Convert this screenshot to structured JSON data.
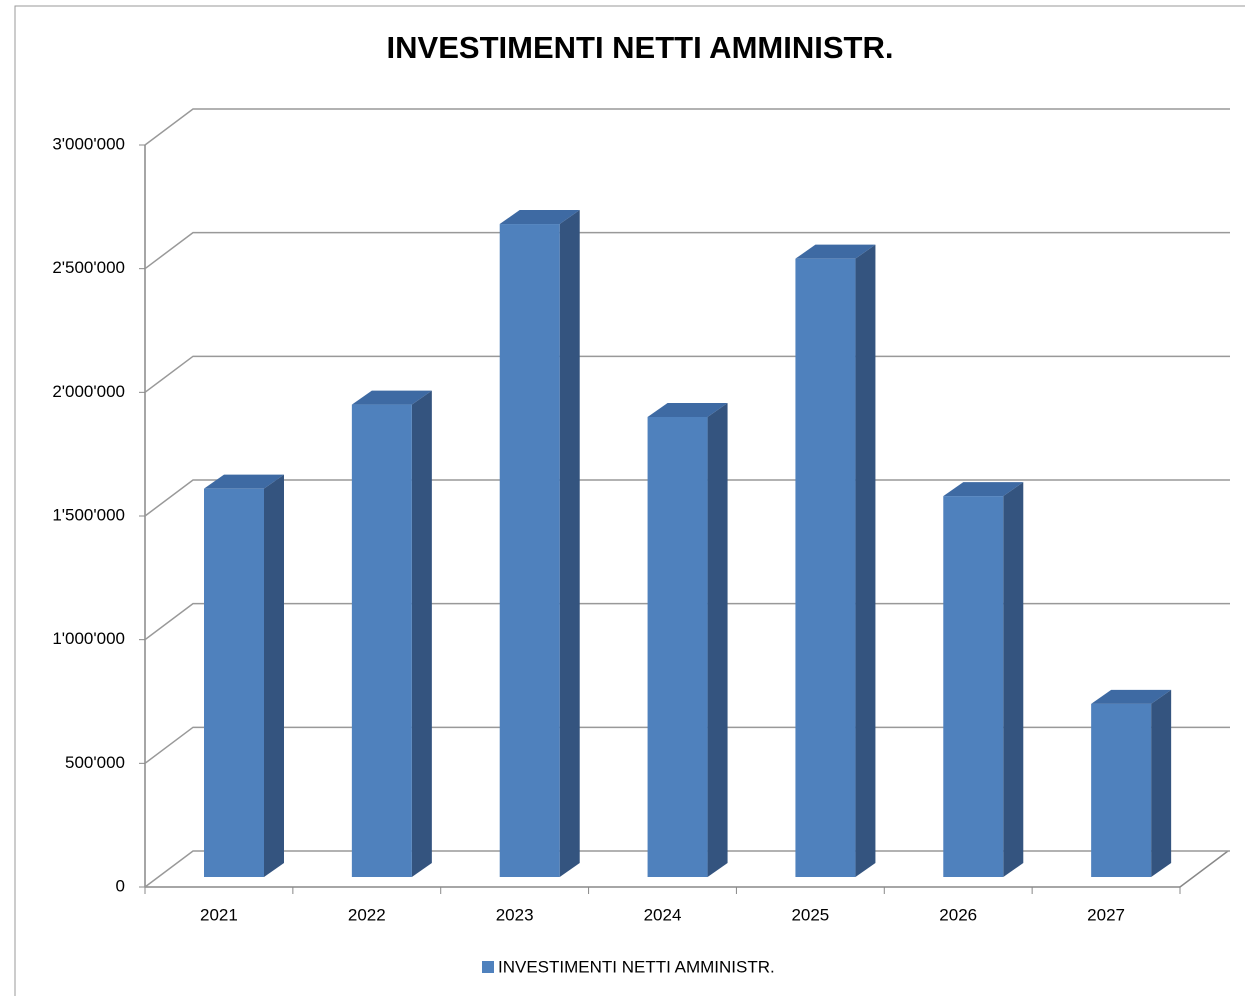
{
  "chart_data": {
    "type": "bar3d",
    "title": "INVESTIMENTI NETTI AMMINISTR.",
    "categories": [
      "2021",
      "2022",
      "2023",
      "2024",
      "2025",
      "2026",
      "2027"
    ],
    "series": [
      {
        "name": "INVESTIMENTI NETTI AMMINISTR.",
        "color": "#4f81bd",
        "values": [
          1570000,
          1910000,
          2640000,
          1860000,
          2500000,
          1540000,
          700000
        ]
      }
    ],
    "ylim": [
      0,
      3000000
    ],
    "yticks": [
      0,
      {
        "value": 500000,
        "label": "500'000"
      },
      {
        "value": 1000000,
        "label": "1'000'000"
      },
      {
        "value": 1500000,
        "label": "1'500'000"
      },
      {
        "value": 2000000,
        "label": "2'000'000"
      },
      {
        "value": 2500000,
        "label": "2'500'000"
      },
      {
        "value": 3000000,
        "label": "3'000'000"
      }
    ],
    "grid": true,
    "legend": "bottom"
  }
}
